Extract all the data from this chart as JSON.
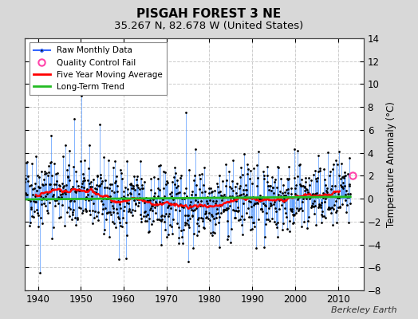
{
  "title": "PISGAH FOREST 3 NE",
  "subtitle": "35.267 N, 82.678 W (United States)",
  "ylabel": "Temperature Anomaly (°C)",
  "xlabel_bottom": "Berkeley Earth",
  "ylim": [
    -8,
    14
  ],
  "yticks": [
    -8,
    -6,
    -4,
    -2,
    0,
    2,
    4,
    6,
    8,
    10,
    12,
    14
  ],
  "xlim": [
    1937,
    2016
  ],
  "xticks": [
    1940,
    1950,
    1960,
    1970,
    1980,
    1990,
    2000,
    2010
  ],
  "outer_bg_color": "#d8d8d8",
  "plot_bg_color": "#ffffff",
  "grid_color": "#cccccc",
  "seed": 42,
  "n_months": 912,
  "start_year": 1937.0,
  "qc_fail_x": 2013.5,
  "qc_fail_y": 2.0,
  "long_term_trend_slope": 0.003,
  "long_term_trend_intercept": 0.05
}
